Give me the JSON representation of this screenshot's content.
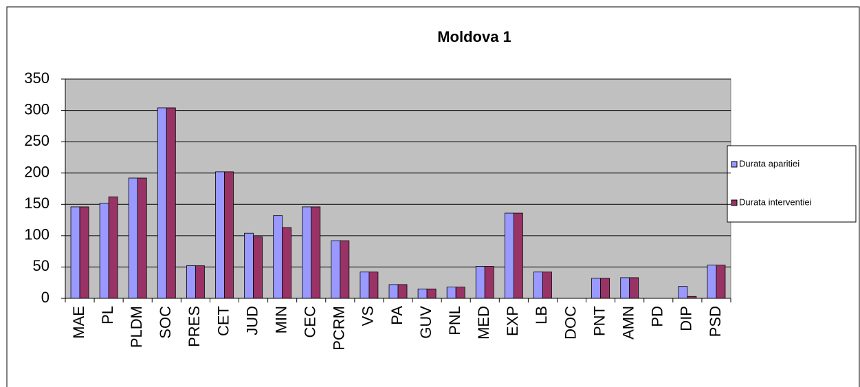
{
  "chart_data": {
    "type": "bar",
    "title": "Moldova 1",
    "categories": [
      "MAE",
      "PL",
      "PLDM",
      "SOC",
      "PRES",
      "CET",
      "JUD",
      "MIN",
      "CEC",
      "PCRM",
      "VS",
      "PA",
      "GUV",
      "PNL",
      "MED",
      "EXP",
      "LB",
      "DOC",
      "PNT",
      "AMN",
      "PD",
      "DIP",
      "PSD"
    ],
    "series": [
      {
        "name": "Durata aparitiei",
        "color": "#9999ff",
        "values": [
          146,
          152,
          192,
          304,
          52,
          202,
          104,
          132,
          146,
          92,
          42,
          22,
          15,
          18,
          51,
          136,
          42,
          0,
          32,
          33,
          0,
          19,
          53
        ]
      },
      {
        "name": "Durata interventiei",
        "color": "#993366",
        "values": [
          146,
          162,
          192,
          304,
          52,
          202,
          98,
          113,
          146,
          92,
          42,
          22,
          15,
          18,
          51,
          136,
          42,
          0,
          32,
          33,
          0,
          3,
          53
        ]
      }
    ],
    "ylim": [
      0,
      350
    ],
    "yticks": [
      0,
      50,
      100,
      150,
      200,
      250,
      300,
      350
    ],
    "grid": true,
    "legend": "right"
  }
}
